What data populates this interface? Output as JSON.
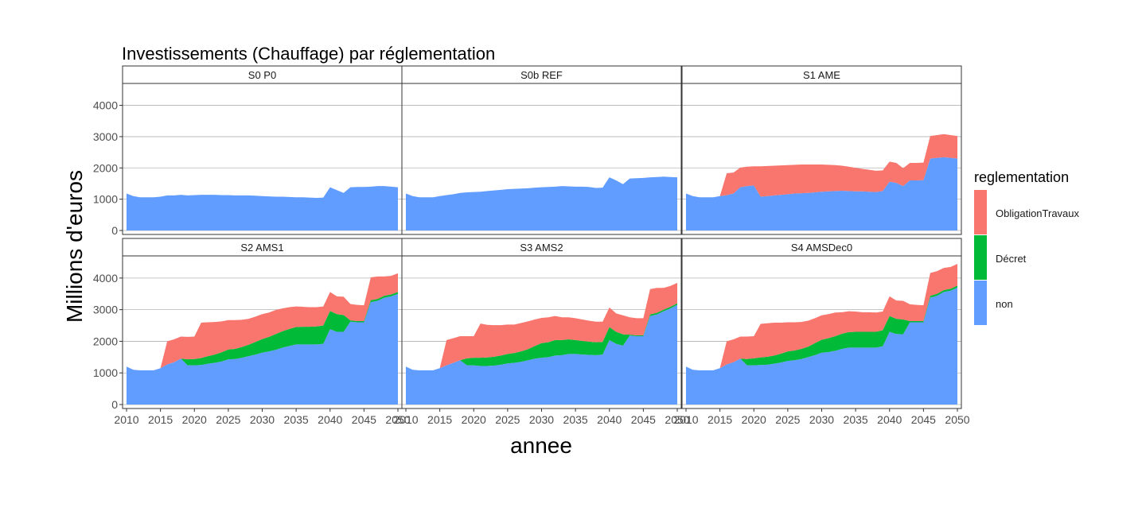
{
  "chart_data": {
    "type": "area",
    "stacked": true,
    "title": "Investissements (Chauffage) par réglementation",
    "xlabel": "annee",
    "ylabel": "Millions d'euros",
    "xlim": [
      2010,
      2050
    ],
    "ylim": [
      0,
      4700
    ],
    "x_ticks": [
      2010,
      2015,
      2020,
      2025,
      2030,
      2035,
      2040,
      2045,
      2050
    ],
    "y_ticks": [
      0,
      1000,
      2000,
      3000,
      4000
    ],
    "grid": "horizontal",
    "legend": {
      "title": "reglementation",
      "position": "right",
      "items": [
        {
          "name": "ObligationTravaux",
          "color": "#F8766D"
        },
        {
          "name": "Décret",
          "color": "#00BA38"
        },
        {
          "name": "non",
          "color": "#619CFF"
        }
      ]
    },
    "years": [
      2010,
      2011,
      2012,
      2013,
      2014,
      2015,
      2016,
      2017,
      2018,
      2019,
      2020,
      2021,
      2022,
      2023,
      2024,
      2025,
      2026,
      2027,
      2028,
      2029,
      2030,
      2031,
      2032,
      2033,
      2034,
      2035,
      2036,
      2037,
      2038,
      2039,
      2040,
      2041,
      2042,
      2043,
      2044,
      2045,
      2046,
      2047,
      2048,
      2049,
      2050
    ],
    "panels": [
      {
        "name": "S0 P0",
        "series": [
          {
            "name": "non",
            "values": [
              1180,
              1100,
              1060,
              1060,
              1060,
              1080,
              1120,
              1120,
              1140,
              1120,
              1130,
              1140,
              1140,
              1140,
              1130,
              1130,
              1120,
              1120,
              1120,
              1110,
              1100,
              1090,
              1080,
              1080,
              1070,
              1060,
              1060,
              1050,
              1040,
              1050,
              1380,
              1290,
              1200,
              1380,
              1390,
              1390,
              1400,
              1420,
              1420,
              1400,
              1380
            ]
          },
          {
            "name": "Décret",
            "values": [
              0,
              0,
              0,
              0,
              0,
              0,
              0,
              0,
              0,
              0,
              0,
              0,
              0,
              0,
              0,
              0,
              0,
              0,
              0,
              0,
              0,
              0,
              0,
              0,
              0,
              0,
              0,
              0,
              0,
              0,
              0,
              0,
              0,
              0,
              0,
              0,
              0,
              0,
              0,
              0,
              0
            ]
          },
          {
            "name": "ObligationTravaux",
            "values": [
              0,
              0,
              0,
              0,
              0,
              0,
              0,
              0,
              0,
              0,
              0,
              0,
              0,
              0,
              0,
              0,
              0,
              0,
              0,
              0,
              0,
              0,
              0,
              0,
              0,
              0,
              0,
              0,
              0,
              0,
              0,
              0,
              0,
              0,
              0,
              0,
              0,
              0,
              0,
              0,
              0
            ]
          }
        ]
      },
      {
        "name": "S0b REF",
        "series": [
          {
            "name": "non",
            "values": [
              1180,
              1100,
              1060,
              1060,
              1060,
              1100,
              1130,
              1160,
              1200,
              1220,
              1230,
              1240,
              1260,
              1280,
              1300,
              1320,
              1330,
              1340,
              1350,
              1370,
              1380,
              1390,
              1400,
              1420,
              1410,
              1400,
              1400,
              1390,
              1360,
              1370,
              1700,
              1600,
              1480,
              1660,
              1670,
              1680,
              1700,
              1710,
              1720,
              1710,
              1700
            ]
          },
          {
            "name": "Décret",
            "values": [
              0,
              0,
              0,
              0,
              0,
              0,
              0,
              0,
              0,
              0,
              0,
              0,
              0,
              0,
              0,
              0,
              0,
              0,
              0,
              0,
              0,
              0,
              0,
              0,
              0,
              0,
              0,
              0,
              0,
              0,
              0,
              0,
              0,
              0,
              0,
              0,
              0,
              0,
              0,
              0,
              0
            ]
          },
          {
            "name": "ObligationTravaux",
            "values": [
              0,
              0,
              0,
              0,
              0,
              0,
              0,
              0,
              0,
              0,
              0,
              0,
              0,
              0,
              0,
              0,
              0,
              0,
              0,
              0,
              0,
              0,
              0,
              0,
              0,
              0,
              0,
              0,
              0,
              0,
              0,
              0,
              0,
              0,
              0,
              0,
              0,
              0,
              0,
              0,
              0
            ]
          }
        ]
      },
      {
        "name": "S1 AME",
        "series": [
          {
            "name": "non",
            "values": [
              1180,
              1100,
              1060,
              1060,
              1060,
              1100,
              1130,
              1180,
              1380,
              1420,
              1440,
              1080,
              1100,
              1120,
              1140,
              1160,
              1180,
              1190,
              1200,
              1220,
              1240,
              1250,
              1260,
              1270,
              1260,
              1250,
              1250,
              1240,
              1230,
              1260,
              1560,
              1520,
              1420,
              1600,
              1600,
              1610,
              2300,
              2320,
              2340,
              2320,
              2300
            ]
          },
          {
            "name": "Décret",
            "values": [
              0,
              0,
              0,
              0,
              0,
              0,
              0,
              0,
              0,
              0,
              0,
              0,
              0,
              0,
              0,
              0,
              0,
              0,
              0,
              0,
              0,
              0,
              0,
              0,
              0,
              0,
              0,
              0,
              0,
              0,
              0,
              0,
              0,
              0,
              0,
              0,
              0,
              0,
              0,
              0,
              0
            ]
          },
          {
            "name": "ObligationTravaux",
            "values": [
              0,
              0,
              0,
              0,
              0,
              0,
              700,
              670,
              630,
              620,
              610,
              970,
              960,
              950,
              940,
              930,
              920,
              920,
              910,
              890,
              870,
              850,
              830,
              800,
              780,
              750,
              720,
              700,
              680,
              660,
              640,
              640,
              570,
              560,
              560,
              560,
              720,
              730,
              740,
              730,
              720
            ]
          }
        ]
      },
      {
        "name": "S2 AMS1",
        "series": [
          {
            "name": "non",
            "values": [
              1200,
              1100,
              1080,
              1080,
              1080,
              1150,
              1270,
              1340,
              1450,
              1240,
              1240,
              1250,
              1290,
              1320,
              1360,
              1430,
              1440,
              1480,
              1530,
              1580,
              1640,
              1680,
              1730,
              1800,
              1850,
              1900,
              1900,
              1900,
              1900,
              1920,
              2380,
              2300,
              2300,
              2620,
              2600,
              2600,
              3240,
              3280,
              3380,
              3420,
              3500
            ]
          },
          {
            "name": "Décret",
            "values": [
              0,
              0,
              0,
              0,
              0,
              0,
              0,
              0,
              0,
              190,
              200,
              220,
              240,
              260,
              290,
              310,
              320,
              340,
              360,
              400,
              430,
              460,
              500,
              520,
              540,
              550,
              560,
              560,
              570,
              580,
              580,
              560,
              530,
              40,
              40,
              40,
              60,
              60,
              60,
              60,
              60
            ]
          },
          {
            "name": "ObligationTravaux",
            "values": [
              0,
              0,
              0,
              0,
              0,
              0,
              730,
              720,
              700,
              710,
              710,
              1120,
              1070,
              1030,
              980,
              930,
              910,
              860,
              820,
              800,
              790,
              770,
              760,
              720,
              690,
              650,
              630,
              620,
              610,
              600,
              600,
              560,
              580,
              520,
              510,
              500,
              720,
              710,
              610,
              590,
              590
            ]
          }
        ]
      },
      {
        "name": "S3 AMS2",
        "series": [
          {
            "name": "non",
            "values": [
              1200,
              1100,
              1080,
              1080,
              1080,
              1150,
              1240,
              1320,
              1400,
              1240,
              1240,
              1220,
              1220,
              1230,
              1260,
              1300,
              1320,
              1350,
              1400,
              1450,
              1480,
              1500,
              1550,
              1560,
              1600,
              1600,
              1580,
              1570,
              1560,
              1580,
              2040,
              1920,
              1860,
              2180,
              2160,
              2160,
              2800,
              2850,
              2950,
              3040,
              3150
            ]
          },
          {
            "name": "Décret",
            "values": [
              0,
              0,
              0,
              0,
              0,
              0,
              0,
              0,
              0,
              220,
              240,
              260,
              270,
              280,
              290,
              300,
              310,
              330,
              350,
              400,
              460,
              470,
              490,
              480,
              460,
              440,
              430,
              420,
              410,
              400,
              410,
              380,
              360,
              30,
              30,
              30,
              50,
              50,
              50,
              50,
              50
            ]
          },
          {
            "name": "ObligationTravaux",
            "values": [
              0,
              0,
              0,
              0,
              0,
              0,
              800,
              780,
              760,
              700,
              680,
              1080,
              1030,
              1000,
              960,
              930,
              900,
              900,
              880,
              840,
              800,
              790,
              760,
              720,
              700,
              690,
              680,
              660,
              650,
              640,
              620,
              580,
              600,
              550,
              540,
              540,
              800,
              790,
              690,
              660,
              650
            ]
          }
        ]
      },
      {
        "name": "S4 AMSDec0",
        "series": [
          {
            "name": "non",
            "values": [
              1200,
              1100,
              1080,
              1080,
              1080,
              1150,
              1270,
              1340,
              1450,
              1240,
              1240,
              1250,
              1260,
              1290,
              1330,
              1380,
              1400,
              1440,
              1500,
              1560,
              1640,
              1660,
              1700,
              1760,
              1800,
              1800,
              1800,
              1800,
              1800,
              1840,
              2300,
              2230,
              2220,
              2600,
              2600,
              2600,
              3380,
              3440,
              3560,
              3600,
              3700
            ]
          },
          {
            "name": "Décret",
            "values": [
              0,
              0,
              0,
              0,
              0,
              0,
              0,
              0,
              0,
              200,
              220,
              240,
              250,
              260,
              280,
              300,
              310,
              320,
              330,
              380,
              410,
              440,
              460,
              480,
              490,
              500,
              500,
              500,
              500,
              510,
              500,
              480,
              470,
              40,
              40,
              40,
              60,
              60,
              60,
              60,
              60
            ]
          },
          {
            "name": "ObligationTravaux",
            "values": [
              0,
              0,
              0,
              0,
              0,
              0,
              730,
              720,
              700,
              710,
              700,
              1060,
              1060,
              1040,
              980,
              920,
              890,
              850,
              820,
              790,
              770,
              760,
              750,
              680,
              660,
              640,
              620,
              620,
              610,
              590,
              620,
              580,
              590,
              530,
              510,
              500,
              720,
              720,
              700,
              690,
              690
            ]
          }
        ]
      }
    ]
  }
}
